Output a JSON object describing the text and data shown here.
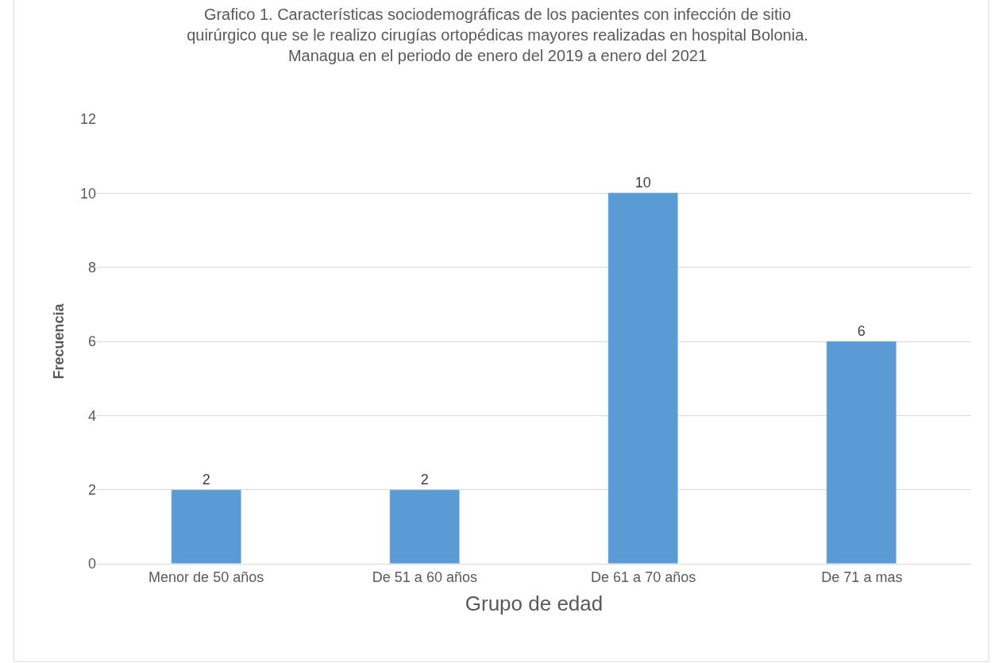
{
  "chart_data": {
    "type": "bar",
    "title": "Grafico 1. Características sociodemográficas de los pacientes con infección de sitio\nquirúrgico que se le realizo cirugías ortopédicas mayores realizadas en hospital Bolonia.\nManagua en el periodo de enero del 2019 a enero del 2021",
    "xlabel": "Grupo de edad",
    "ylabel": "Frecuencia",
    "categories": [
      "Menor de 50 años",
      "De 51 a 60 años",
      "De 61 a 70 años",
      "De 71 a mas"
    ],
    "values": [
      2,
      2,
      10,
      6
    ],
    "color": "#5b9bd5",
    "ylim": [
      0,
      12
    ],
    "yticks": [
      0,
      2,
      4,
      6,
      8,
      10,
      12
    ],
    "grid": "y",
    "legend": false,
    "data_labels": true
  }
}
